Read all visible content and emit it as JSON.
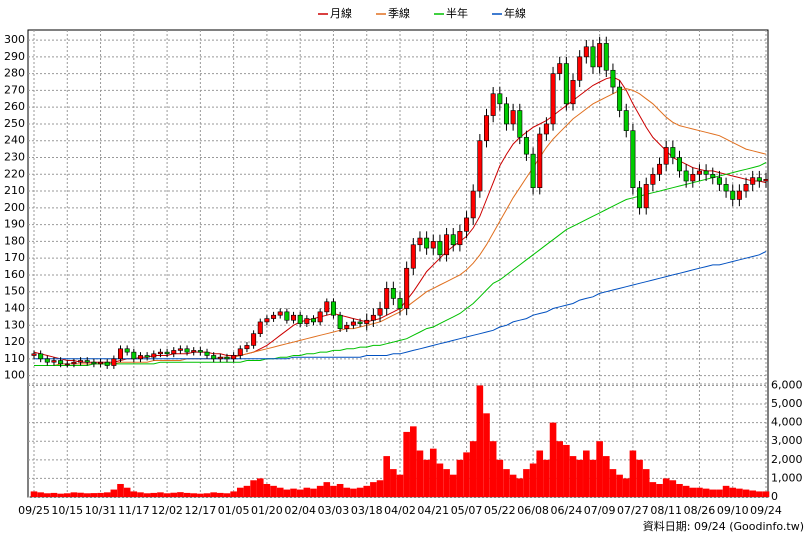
{
  "chart_data": {
    "type": "candlestick",
    "categories": [
      "09/25",
      null,
      null,
      null,
      null,
      "10/15",
      null,
      null,
      null,
      null,
      "10/31",
      null,
      null,
      null,
      null,
      "11/17",
      null,
      null,
      null,
      null,
      "12/02",
      null,
      null,
      null,
      null,
      "12/17",
      null,
      null,
      null,
      null,
      "01/05",
      null,
      null,
      null,
      null,
      "01/20",
      null,
      null,
      null,
      null,
      "02/04",
      null,
      null,
      null,
      null,
      "03/03",
      null,
      null,
      null,
      null,
      "03/18",
      null,
      null,
      null,
      null,
      "04/02",
      null,
      null,
      null,
      null,
      "04/21",
      null,
      null,
      null,
      null,
      "05/07",
      null,
      null,
      null,
      null,
      "05/22",
      null,
      null,
      null,
      null,
      "06/08",
      null,
      null,
      null,
      null,
      "06/24",
      null,
      null,
      null,
      null,
      "07/09",
      null,
      null,
      null,
      null,
      "07/27",
      null,
      null,
      null,
      null,
      "08/11",
      null,
      null,
      null,
      null,
      "08/26",
      null,
      null,
      null,
      null,
      "09/10",
      null,
      null,
      null,
      null,
      "09/24"
    ],
    "open": [
      112,
      113,
      110,
      108,
      109,
      107,
      107,
      108,
      109,
      108,
      107,
      108,
      106,
      110,
      116,
      114,
      110,
      112,
      111,
      113,
      114,
      113,
      115,
      116,
      114,
      115,
      114,
      112,
      110,
      111,
      110,
      112,
      116,
      118,
      125,
      132,
      134,
      136,
      138,
      133,
      136,
      131,
      134,
      132,
      138,
      144,
      136,
      128,
      130,
      132,
      131,
      133,
      136,
      140,
      152,
      146,
      140,
      164,
      178,
      182,
      176,
      180,
      172,
      184,
      178,
      186,
      194,
      210,
      240,
      255,
      268,
      262,
      250,
      258,
      242,
      232,
      212,
      244,
      250,
      280,
      286,
      262,
      276,
      290,
      296,
      284,
      298,
      282,
      272,
      258,
      246,
      212,
      200,
      214,
      220,
      226,
      236,
      230,
      222,
      216,
      220,
      222,
      220,
      218,
      214,
      210,
      205,
      210,
      214,
      218,
      216
    ],
    "high": [
      115,
      115,
      112,
      111,
      111,
      109,
      110,
      111,
      111,
      110,
      110,
      110,
      112,
      118,
      118,
      116,
      114,
      114,
      115,
      116,
      116,
      117,
      118,
      118,
      117,
      117,
      116,
      114,
      113,
      113,
      114,
      118,
      120,
      127,
      134,
      136,
      138,
      140,
      140,
      138,
      138,
      136,
      136,
      140,
      146,
      146,
      138,
      132,
      134,
      134,
      137,
      140,
      144,
      156,
      156,
      150,
      168,
      182,
      186,
      186,
      184,
      184,
      188,
      188,
      190,
      198,
      214,
      244,
      259,
      272,
      272,
      266,
      262,
      262,
      246,
      236,
      248,
      254,
      284,
      290,
      290,
      280,
      294,
      300,
      300,
      302,
      302,
      286,
      276,
      262,
      250,
      216,
      218,
      224,
      230,
      240,
      240,
      234,
      226,
      224,
      226,
      226,
      224,
      222,
      218,
      214,
      214,
      218,
      222,
      222,
      221
    ],
    "low": [
      110,
      108,
      106,
      106,
      105,
      105,
      105,
      106,
      106,
      105,
      105,
      104,
      104,
      108,
      112,
      108,
      108,
      109,
      109,
      111,
      111,
      111,
      113,
      112,
      112,
      112,
      110,
      108,
      108,
      108,
      108,
      110,
      114,
      116,
      123,
      130,
      132,
      134,
      131,
      131,
      129,
      129,
      130,
      130,
      136,
      134,
      126,
      126,
      128,
      129,
      127,
      129,
      132,
      136,
      142,
      136,
      136,
      160,
      174,
      172,
      172,
      168,
      168,
      174,
      174,
      182,
      190,
      206,
      236,
      251,
      258,
      246,
      246,
      238,
      228,
      208,
      208,
      240,
      246,
      276,
      258,
      258,
      272,
      286,
      280,
      280,
      278,
      268,
      254,
      242,
      208,
      196,
      196,
      210,
      216,
      222,
      226,
      218,
      212,
      212,
      216,
      216,
      214,
      210,
      206,
      201,
      201,
      206,
      210,
      212,
      212
    ],
    "close": [
      113,
      110,
      108,
      109,
      107,
      107,
      108,
      109,
      108,
      107,
      108,
      106,
      110,
      116,
      114,
      110,
      112,
      111,
      113,
      114,
      113,
      115,
      116,
      114,
      115,
      114,
      112,
      110,
      111,
      110,
      112,
      116,
      118,
      125,
      132,
      134,
      136,
      138,
      133,
      136,
      131,
      134,
      132,
      138,
      144,
      136,
      128,
      130,
      132,
      131,
      133,
      136,
      140,
      152,
      146,
      140,
      164,
      178,
      182,
      176,
      180,
      172,
      184,
      178,
      186,
      194,
      210,
      240,
      255,
      268,
      262,
      250,
      258,
      242,
      232,
      212,
      244,
      250,
      280,
      286,
      262,
      276,
      290,
      296,
      284,
      298,
      282,
      272,
      258,
      246,
      212,
      200,
      214,
      220,
      226,
      236,
      230,
      222,
      216,
      220,
      222,
      220,
      218,
      214,
      210,
      205,
      210,
      214,
      218,
      216,
      217
    ],
    "volume": [
      300,
      250,
      200,
      220,
      180,
      200,
      250,
      230,
      200,
      210,
      220,
      250,
      400,
      700,
      500,
      300,
      250,
      200,
      220,
      250,
      200,
      230,
      260,
      220,
      200,
      180,
      200,
      250,
      220,
      200,
      300,
      500,
      600,
      900,
      1000,
      700,
      600,
      500,
      400,
      450,
      400,
      500,
      450,
      600,
      800,
      600,
      700,
      500,
      450,
      500,
      600,
      800,
      900,
      2200,
      1500,
      1200,
      3500,
      3800,
      2500,
      2000,
      2600,
      1800,
      1500,
      1200,
      2000,
      2400,
      3000,
      6000,
      4500,
      3000,
      2000,
      1500,
      1200,
      1000,
      1500,
      1800,
      2500,
      2000,
      4000,
      3000,
      2800,
      2200,
      2000,
      2500,
      2000,
      3000,
      2200,
      1500,
      1200,
      1000,
      2500,
      2000,
      1500,
      800,
      700,
      1000,
      900,
      700,
      600,
      500,
      500,
      450,
      400,
      400,
      600,
      500,
      450,
      400,
      350,
      300,
      300
    ],
    "up_color": "#ff0000",
    "down_color": "#00cc00",
    "volume_color": "#ff0000",
    "series": [
      {
        "name": "月線",
        "color": "#cc0000",
        "values": [
          114,
          113,
          112,
          111,
          110,
          109,
          109,
          108,
          108,
          108,
          108,
          108,
          108,
          109,
          110,
          110,
          111,
          111,
          112,
          112,
          112,
          113,
          113,
          113,
          114,
          114,
          114,
          113,
          113,
          112,
          112,
          112,
          113,
          114,
          116,
          118,
          121,
          124,
          127,
          130,
          132,
          133,
          134,
          135,
          136,
          137,
          136,
          135,
          134,
          133,
          132,
          133,
          134,
          136,
          138,
          140,
          145,
          150,
          156,
          162,
          166,
          170,
          174,
          177,
          180,
          183,
          188,
          195,
          205,
          215,
          225,
          232,
          238,
          242,
          245,
          248,
          250,
          252,
          255,
          258,
          261,
          264,
          267,
          270,
          273,
          275,
          277,
          278,
          276,
          270,
          262,
          255,
          248,
          242,
          238,
          234,
          230,
          228,
          226,
          224,
          223,
          222,
          222,
          221,
          220,
          219,
          218,
          217,
          216,
          216,
          215
        ]
      },
      {
        "name": "季線",
        "color": "#e07020",
        "values": [
          106,
          106,
          106,
          106,
          107,
          107,
          107,
          107,
          107,
          107,
          107,
          107,
          107,
          108,
          108,
          108,
          108,
          108,
          109,
          109,
          109,
          109,
          109,
          110,
          110,
          110,
          110,
          110,
          111,
          111,
          111,
          112,
          113,
          114,
          115,
          116,
          117,
          118,
          119,
          120,
          121,
          122,
          123,
          124,
          125,
          126,
          127,
          128,
          128,
          129,
          130,
          131,
          132,
          134,
          136,
          138,
          141,
          144,
          147,
          150,
          152,
          154,
          156,
          158,
          160,
          163,
          167,
          172,
          178,
          185,
          192,
          199,
          206,
          212,
          218,
          224,
          230,
          236,
          241,
          245,
          249,
          253,
          256,
          259,
          262,
          264,
          266,
          268,
          270,
          271,
          270,
          268,
          265,
          262,
          258,
          254,
          251,
          249,
          248,
          247,
          246,
          245,
          244,
          243,
          241,
          239,
          237,
          235,
          234,
          233,
          232
        ]
      },
      {
        "name": "半年",
        "color": "#00c000",
        "values": [
          106,
          106,
          106,
          106,
          106,
          106,
          106,
          106,
          106,
          107,
          107,
          107,
          107,
          107,
          107,
          107,
          107,
          107,
          107,
          108,
          108,
          108,
          108,
          108,
          108,
          108,
          108,
          108,
          108,
          108,
          108,
          108,
          109,
          109,
          109,
          110,
          110,
          111,
          111,
          112,
          112,
          113,
          113,
          114,
          114,
          115,
          115,
          116,
          116,
          117,
          117,
          118,
          118,
          119,
          120,
          121,
          122,
          124,
          126,
          128,
          129,
          131,
          133,
          135,
          137,
          140,
          143,
          147,
          151,
          155,
          157,
          160,
          163,
          166,
          169,
          172,
          175,
          178,
          181,
          184,
          187,
          189,
          191,
          193,
          195,
          197,
          199,
          201,
          203,
          205,
          206,
          207,
          208,
          209,
          210,
          211,
          212,
          213,
          214,
          215,
          216,
          217,
          218,
          219,
          220,
          221,
          222,
          223,
          224,
          225,
          227
        ]
      },
      {
        "name": "年線",
        "color": "#0050c0",
        "values": [
          110,
          110,
          110,
          110,
          110,
          110,
          110,
          110,
          110,
          110,
          110,
          110,
          110,
          110,
          110,
          110,
          110,
          110,
          110,
          110,
          110,
          110,
          110,
          110,
          110,
          110,
          110,
          110,
          110,
          110,
          110,
          110,
          110,
          110,
          110,
          110,
          110,
          110,
          110,
          111,
          111,
          111,
          111,
          111,
          111,
          111,
          111,
          111,
          111,
          111,
          112,
          112,
          112,
          112,
          113,
          113,
          114,
          115,
          116,
          117,
          118,
          119,
          120,
          121,
          122,
          123,
          124,
          125,
          126,
          127,
          129,
          130,
          132,
          133,
          134,
          136,
          137,
          138,
          140,
          141,
          142,
          143,
          145,
          146,
          147,
          149,
          150,
          151,
          152,
          153,
          154,
          155,
          156,
          157,
          158,
          159,
          160,
          161,
          162,
          163,
          164,
          165,
          166,
          166,
          167,
          168,
          169,
          170,
          171,
          172,
          174
        ]
      }
    ],
    "ylim": [
      95,
      306
    ],
    "yticks": [
      100,
      110,
      120,
      130,
      140,
      150,
      160,
      170,
      180,
      190,
      200,
      210,
      220,
      230,
      240,
      250,
      260,
      270,
      280,
      290,
      300
    ],
    "y2lim": [
      0,
      6400
    ],
    "y2ticks": [
      0,
      {
        "value": 1000,
        "label": "1,000"
      },
      {
        "value": 2000,
        "label": "2,000"
      },
      {
        "value": 3000,
        "label": "3,000"
      },
      {
        "value": 4000,
        "label": "4,000"
      },
      {
        "value": 5000,
        "label": "5,000"
      },
      {
        "value": 6000,
        "label": "6,000"
      }
    ],
    "grid": true,
    "legend_position": "top",
    "source_note": "資料日期: 09/24 (Goodinfo.tw)"
  }
}
